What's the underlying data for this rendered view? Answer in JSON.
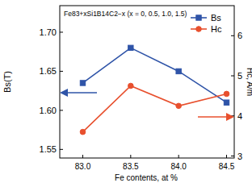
{
  "chart_data": {
    "type": "line",
    "title": "Fe83+xSi1B14C2−x (x = 0, 0.5, 1.0, 1.5)",
    "x_label": "Fe contents, at %",
    "y_label": "Bs(T)",
    "y2_label": "Hc, A/m",
    "x": [
      83.0,
      83.5,
      84.0,
      84.5
    ],
    "xlim": [
      82.76,
      84.58
    ],
    "xticks": [
      {
        "value": 83.0,
        "label": "83.0"
      },
      {
        "value": 83.5,
        "label": "83.5"
      },
      {
        "value": 84.0,
        "label": "84.0"
      },
      {
        "value": 84.5,
        "label": "84.5"
      }
    ],
    "ylim": [
      1.539,
      1.734
    ],
    "yticks": [
      {
        "value": 1.55,
        "label": "1.55"
      },
      {
        "value": 1.6,
        "label": "1.60"
      },
      {
        "value": 1.65,
        "label": "1.65"
      },
      {
        "value": 1.7,
        "label": "1.70"
      }
    ],
    "y2lim": [
      2.95,
      6.75
    ],
    "y2ticks": [
      3,
      4,
      5,
      6
    ],
    "legend": "upper right",
    "grid": false,
    "series": [
      {
        "name": "Bs",
        "color": "#2f54a8",
        "marker": "square",
        "values": [
          1.635,
          1.68,
          1.65,
          1.61
        ]
      },
      {
        "name": "Hc",
        "color": "#e8502e",
        "marker": "circle",
        "axis": "y2",
        "values": [
          3.6,
          4.75,
          4.25,
          4.55
        ]
      }
    ]
  }
}
